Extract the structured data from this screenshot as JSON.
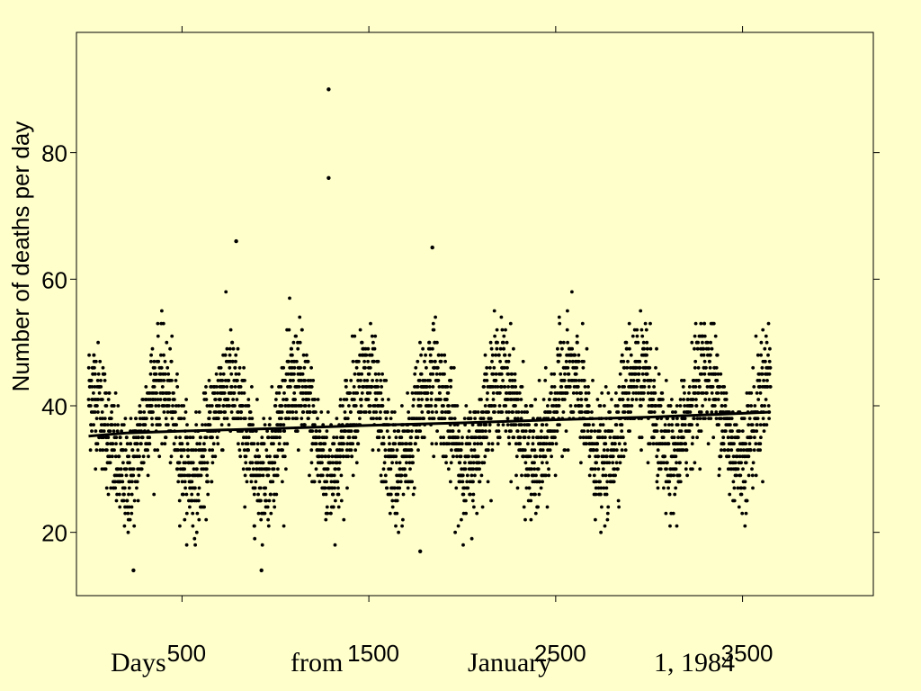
{
  "chart_data": {
    "type": "scatter",
    "ylabel": "Number of deaths per day",
    "footer_words": [
      "Days",
      "from",
      "January",
      "1, 1984"
    ],
    "xlim": [
      -65,
      4200
    ],
    "ylim": [
      10,
      99
    ],
    "xticks": [
      500,
      1500,
      2500,
      3500
    ],
    "xtick_labels": [
      "500",
      "1500",
      "2500",
      "3500"
    ],
    "yticks": [
      20,
      40,
      60,
      80
    ],
    "ytick_labels": [
      "20",
      "40",
      "60",
      "80"
    ],
    "grid": false,
    "scatter_summary": {
      "x_range": [
        0,
        3650
      ],
      "typical_y_range": [
        22,
        55
      ],
      "min_y": 14,
      "max_y": 90,
      "seasonal_period_days": 365,
      "outliers": [
        {
          "x": 1285,
          "y": 90
        },
        {
          "x": 1285,
          "y": 76
        },
        {
          "x": 790,
          "y": 66
        },
        {
          "x": 1840,
          "y": 65
        },
        {
          "x": 240,
          "y": 14
        },
        {
          "x": 925,
          "y": 14
        },
        {
          "x": 1775,
          "y": 17
        }
      ]
    },
    "trend_line": {
      "x": [
        0,
        200,
        500,
        1000,
        1500,
        2000,
        2500,
        3000,
        3500,
        3650
      ],
      "y": [
        35.2,
        35.7,
        36.0,
        36.4,
        36.9,
        37.3,
        37.8,
        38.2,
        38.8,
        39.0
      ]
    }
  }
}
